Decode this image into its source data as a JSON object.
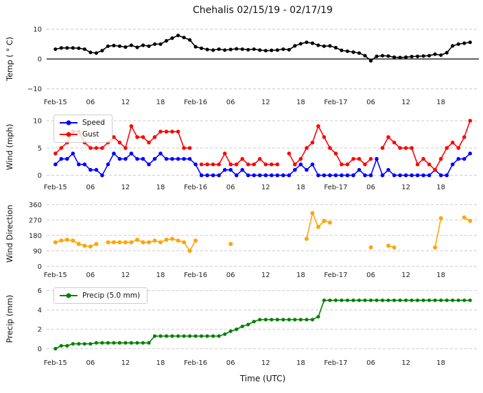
{
  "title": "Chehalis 02/15/19 - 02/17/19",
  "xlabel": "Time (UTC)",
  "colors": {
    "temp": "#000000",
    "speed": "#0000ff",
    "gust": "#ff0000",
    "direction": "#ffa500",
    "precip": "#008000",
    "grid": "#c9c9c9"
  },
  "x_ticks": {
    "hours": [
      0,
      6,
      12,
      18,
      24,
      30,
      36,
      42,
      48,
      54,
      60,
      66
    ],
    "labels": [
      "Feb-15",
      "06",
      "12",
      "18",
      "Feb-16",
      "06",
      "12",
      "18",
      "Feb-17",
      "06",
      "12",
      "18"
    ]
  },
  "chart_data": [
    {
      "type": "line",
      "ylabel": "Temp ( ° C)",
      "ylim": [
        -11.5,
        11.5
      ],
      "yticks": [
        10,
        0,
        -10
      ],
      "ytick_labels": [
        "10",
        "0",
        "−10"
      ],
      "zero_line": true,
      "grid": "dashed-horizontal",
      "series": [
        {
          "name": "Temp",
          "color_key": "temp",
          "marker": 2.6,
          "values": [
            3.3,
            3.7,
            3.7,
            3.7,
            3.6,
            3.3,
            2.2,
            2.0,
            2.8,
            4.3,
            4.5,
            4.3,
            4.0,
            4.6,
            3.9,
            4.6,
            4.3,
            5.0,
            5.0,
            6.1,
            7.0,
            7.9,
            7.2,
            6.4,
            4.1,
            3.6,
            3.2,
            3.0,
            3.3,
            3.0,
            3.2,
            3.4,
            3.3,
            3.1,
            3.3,
            3.0,
            2.8,
            2.9,
            3.0,
            3.3,
            3.1,
            4.4,
            5.1,
            5.6,
            5.3,
            4.6,
            4.3,
            4.4,
            3.8,
            2.9,
            2.6,
            2.3,
            2.0,
            1.1,
            -0.6,
            0.9,
            1.1,
            1.0,
            0.6,
            0.5,
            0.6,
            0.8,
            0.9,
            1.0,
            1.1,
            1.6,
            1.3,
            2.1,
            4.4,
            5.0,
            5.3,
            5.6
          ]
        }
      ]
    },
    {
      "type": "line",
      "ylabel": "Wind (mph)",
      "ylim": [
        -0.8,
        11.0
      ],
      "yticks": [
        0,
        5,
        10
      ],
      "ytick_labels": [
        "0",
        "5",
        "10"
      ],
      "zero_line": false,
      "grid": "dashed-horizontal",
      "legend_position": "upper-left",
      "series": [
        {
          "name": "Speed",
          "color_key": "speed",
          "marker": 2.8,
          "values": [
            2,
            3,
            3,
            4,
            2,
            2,
            1,
            1,
            0,
            2,
            4,
            3,
            3,
            4,
            3,
            3,
            2,
            3,
            4,
            3,
            3,
            3,
            3,
            3,
            2,
            0,
            0,
            0,
            0,
            1,
            1,
            0,
            1,
            0,
            0,
            0,
            0,
            0,
            0,
            0,
            0,
            1,
            2,
            1,
            2,
            0,
            0,
            0,
            0,
            0,
            0,
            0,
            1,
            0,
            0,
            3,
            0,
            1,
            0,
            0,
            0,
            0,
            0,
            0,
            0,
            1,
            0,
            0,
            2,
            3,
            3,
            4
          ]
        },
        {
          "name": "Gust",
          "color_key": "gust",
          "marker": 2.8,
          "values": [
            4,
            5,
            6,
            8,
            8,
            6,
            5,
            5,
            5,
            6,
            7,
            6,
            5,
            9,
            7,
            7,
            6,
            7,
            8,
            8,
            8,
            8,
            5,
            5,
            null,
            2,
            2,
            2,
            2,
            4,
            2,
            2,
            3,
            2,
            2,
            3,
            2,
            2,
            2,
            null,
            4,
            2,
            3,
            5,
            6,
            9,
            7,
            5,
            4,
            2,
            2,
            3,
            3,
            2,
            3,
            null,
            5,
            7,
            6,
            5,
            5,
            5,
            2,
            3,
            2,
            1,
            3,
            5,
            6,
            5,
            7,
            10
          ]
        }
      ]
    },
    {
      "type": "line",
      "ylabel": "Wind Direction",
      "ylim": [
        -15,
        385
      ],
      "yticks": [
        0,
        90,
        180,
        270,
        360
      ],
      "ytick_labels": [
        "0",
        "90",
        "180",
        "270",
        "360"
      ],
      "zero_line": false,
      "grid": "dashed-horizontal",
      "series": [
        {
          "name": "Wind Direction",
          "color_key": "direction",
          "marker": 3.0,
          "values": [
            140,
            150,
            155,
            150,
            130,
            120,
            115,
            130,
            null,
            140,
            140,
            140,
            140,
            140,
            155,
            140,
            140,
            150,
            140,
            155,
            160,
            150,
            140,
            90,
            150,
            null,
            null,
            null,
            null,
            null,
            130,
            null,
            null,
            null,
            null,
            null,
            null,
            null,
            null,
            null,
            null,
            null,
            null,
            160,
            310,
            230,
            265,
            255,
            null,
            null,
            null,
            null,
            null,
            null,
            110,
            null,
            null,
            120,
            110,
            null,
            null,
            null,
            null,
            null,
            null,
            110,
            280,
            null,
            null,
            null,
            285,
            265
          ]
        }
      ]
    },
    {
      "type": "line",
      "ylabel": "Precip (mm)",
      "ylim": [
        -0.4,
        6.4
      ],
      "yticks": [
        0,
        2,
        4,
        6
      ],
      "ytick_labels": [
        "0",
        "2",
        "4",
        "6"
      ],
      "zero_line": false,
      "grid": "dashed-horizontal",
      "legend_position": "upper-left",
      "series": [
        {
          "name": "Precip (5.0 mm)",
          "color_key": "precip",
          "marker": 2.6,
          "values": [
            0.0,
            0.3,
            0.3,
            0.5,
            0.5,
            0.5,
            0.5,
            0.6,
            0.6,
            0.6,
            0.6,
            0.6,
            0.6,
            0.6,
            0.6,
            0.6,
            0.6,
            1.3,
            1.3,
            1.3,
            1.3,
            1.3,
            1.3,
            1.3,
            1.3,
            1.3,
            1.3,
            1.3,
            1.3,
            1.5,
            1.8,
            2.0,
            2.3,
            2.5,
            2.8,
            3.0,
            3.0,
            3.0,
            3.0,
            3.0,
            3.0,
            3.0,
            3.0,
            3.0,
            3.0,
            3.3,
            5.0,
            5.0,
            5.0,
            5.0,
            5.0,
            5.0,
            5.0,
            5.0,
            5.0,
            5.0,
            5.0,
            5.0,
            5.0,
            5.0,
            5.0,
            5.0,
            5.0,
            5.0,
            5.0,
            5.0,
            5.0,
            5.0,
            5.0,
            5.0,
            5.0,
            5.0
          ]
        }
      ]
    }
  ]
}
